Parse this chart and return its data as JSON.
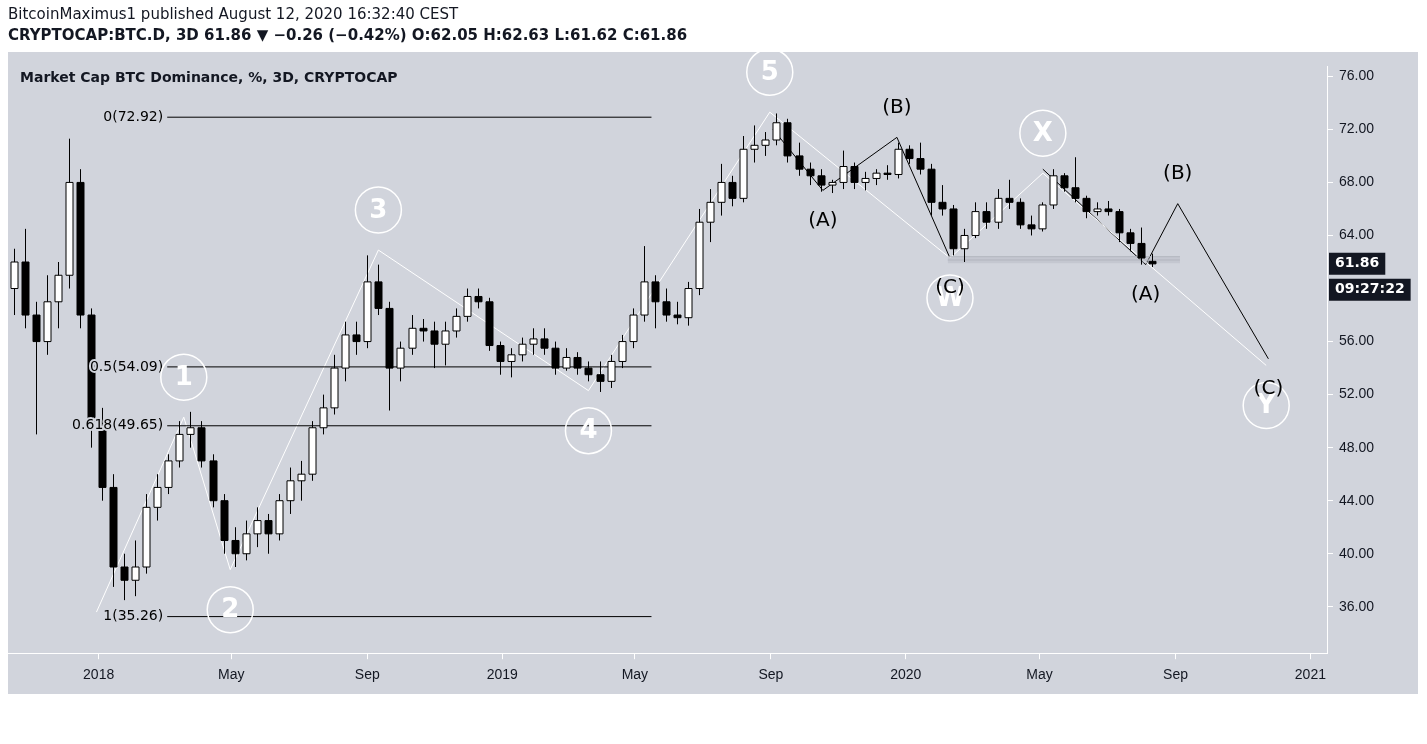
{
  "chart_data": {
    "type": "candlestick",
    "title": "BitcoinMaximus1 published August 12, 2020 16:32:40 CEST",
    "subtitle": "CRYPTOCAP:BTC.D, 3D 61.86 ▼ −0.26 (−0.42%) O:62.05 H:62.63 L:61.62 C:61.86",
    "xlim": [
      "2017-10-11",
      "2021-01-16"
    ],
    "xticks": [
      {
        "value": "2018-01-01",
        "label": "2018"
      },
      {
        "value": "2018-05-01",
        "label": "May"
      },
      {
        "value": "2018-09-01",
        "label": "Sep"
      },
      {
        "value": "2019-01-01",
        "label": "2019"
      },
      {
        "value": "2019-05-01",
        "label": "May"
      },
      {
        "value": "2019-09-01",
        "label": "Sep"
      },
      {
        "value": "2020-01-01",
        "label": "2020"
      },
      {
        "value": "2020-05-01",
        "label": "May"
      },
      {
        "value": "2020-09-01",
        "label": "Sep"
      },
      {
        "value": "2021-01-01",
        "label": "2021"
      }
    ],
    "ylim": [
      32.5,
      76.75
    ],
    "yticks": [
      {
        "value": 36,
        "label": "36.00"
      },
      {
        "value": 40,
        "label": "40.00"
      },
      {
        "value": 44,
        "label": "44.00"
      },
      {
        "value": 48,
        "label": "48.00"
      },
      {
        "value": 52,
        "label": "52.00"
      },
      {
        "value": 56,
        "label": "56.00"
      },
      {
        "value": 64,
        "label": "64.00"
      },
      {
        "value": 68,
        "label": "68.00"
      },
      {
        "value": 72,
        "label": "72.00"
      },
      {
        "value": 76,
        "label": "76.00"
      }
    ],
    "grid": false,
    "legend": false,
    "series": [
      {
        "type": "line",
        "color": "#000000",
        "name": "0(72.92)",
        "x": [
          "2018-03-04",
          "2019-05-16"
        ],
        "values": [
          72.92,
          72.92
        ]
      },
      {
        "type": "line",
        "color": "#000000",
        "name": "0.5(54.09)",
        "x": [
          "2018-03-04",
          "2019-05-16"
        ],
        "values": [
          54.09,
          54.09
        ]
      },
      {
        "type": "line",
        "color": "#000000",
        "name": "0.618(49.65)",
        "x": [
          "2018-03-04",
          "2019-05-16"
        ],
        "values": [
          49.65,
          49.65
        ]
      },
      {
        "type": "line",
        "color": "#000000",
        "name": "1(35.26)",
        "x": [
          "2018-03-04",
          "2019-05-16"
        ],
        "values": [
          35.26,
          35.26
        ]
      },
      {
        "type": "line",
        "color": "#b2b5be",
        "x": [
          "2020-02-08",
          "2020-09-05"
        ],
        "values": [
          62.15,
          62.15
        ],
        "lower": [
          61.9,
          61.9
        ],
        "upper": [
          62.4,
          62.4
        ]
      },
      {
        "type": "line",
        "color": "#ffffff",
        "x": [
          "2017-12-30",
          "2018-03-19",
          "2018-04-30",
          "2018-09-11",
          "2019-03-20",
          "2019-08-31",
          "2020-02-10",
          "2020-05-04",
          "2020-08-05",
          "2020-11-22"
        ],
        "values": [
          35.6,
          50.3,
          38.8,
          62.9,
          52.3,
          73.3,
          62.3,
          68.7,
          62,
          54.2
        ]
      },
      {
        "type": "line",
        "color": "#000000",
        "x": [
          "2019-09-03",
          "2019-10-18",
          "2019-12-24",
          "2020-02-10"
        ],
        "values": [
          72,
          67.4,
          71.4,
          62.3
        ]
      },
      {
        "type": "line",
        "color": "#000000",
        "x": [
          "2020-05-04",
          "2020-08-05",
          "2020-09-03",
          "2020-11-24"
        ],
        "values": [
          69,
          61.8,
          66.4,
          54.7
        ]
      },
      {
        "type": "candlestick",
        "color": "#000000",
        "colors": [
          "#ffffff",
          "#000000",
          "#000000",
          "#ffffff",
          "#ffffff",
          "#ffffff",
          "#000000",
          "#000000",
          "#000000",
          "#000000",
          "#000000",
          "#ffffff",
          "#ffffff",
          "#ffffff",
          "#ffffff",
          "#ffffff",
          "#ffffff",
          "#000000",
          "#000000",
          "#000000",
          "#000000",
          "#ffffff",
          "#ffffff",
          "#000000",
          "#ffffff",
          "#ffffff",
          "#ffffff",
          "#ffffff",
          "#ffffff",
          "#ffffff",
          "#ffffff",
          "#000000",
          "#ffffff",
          "#000000",
          "#000000",
          "#ffffff",
          "#ffffff",
          "#000000",
          "#000000",
          "#ffffff",
          "#ffffff",
          "#ffffff",
          "#000000",
          "#000000",
          "#000000",
          "#ffffff",
          "#ffffff",
          "#ffffff",
          "#000000",
          "#000000",
          "#ffffff",
          "#000000",
          "#000000",
          "#000000",
          "#ffffff",
          "#ffffff",
          "#ffffff",
          "#ffffff",
          "#000000",
          "#000000",
          "#000000",
          "#ffffff",
          "#ffffff",
          "#ffffff",
          "#ffffff",
          "#000000",
          "#ffffff",
          "#ffffff",
          "#ffffff",
          "#ffffff",
          "#000000",
          "#000000",
          "#000000",
          "#000000",
          "#ffffff",
          "#ffffff",
          "#000000",
          "#ffffff",
          "#ffffff",
          "#000000",
          "#ffffff",
          "#000000",
          "#000000",
          "#000000",
          "#000000",
          "#000000",
          "#ffffff",
          "#ffffff",
          "#000000",
          "#ffffff",
          "#000000",
          "#000000",
          "#000000",
          "#ffffff",
          "#ffffff",
          "#000000",
          "#000000",
          "#000000",
          "#ffffff",
          "#000000",
          "#000000",
          "#000000",
          "#000000",
          "#000000"
        ],
        "x": [
          "2017-10-16",
          "2017-10-26",
          "2017-11-05",
          "2017-11-15",
          "2017-11-25",
          "2017-12-05",
          "2017-12-15",
          "2017-12-25",
          "2018-01-04",
          "2018-01-14",
          "2018-01-24",
          "2018-02-03",
          "2018-02-13",
          "2018-02-23",
          "2018-03-05",
          "2018-03-15",
          "2018-03-25",
          "2018-04-04",
          "2018-04-14",
          "2018-04-24",
          "2018-05-04",
          "2018-05-14",
          "2018-05-24",
          "2018-06-03",
          "2018-06-13",
          "2018-06-23",
          "2018-07-03",
          "2018-07-13",
          "2018-07-23",
          "2018-08-02",
          "2018-08-12",
          "2018-08-22",
          "2018-09-01",
          "2018-09-11",
          "2018-09-21",
          "2018-10-01",
          "2018-10-11",
          "2018-10-21",
          "2018-10-31",
          "2018-11-10",
          "2018-11-20",
          "2018-11-30",
          "2018-12-10",
          "2018-12-20",
          "2018-12-30",
          "2019-01-09",
          "2019-01-19",
          "2019-01-29",
          "2019-02-08",
          "2019-02-18",
          "2019-02-28",
          "2019-03-10",
          "2019-03-20",
          "2019-03-30",
          "2019-04-09",
          "2019-04-19",
          "2019-04-29",
          "2019-05-09",
          "2019-05-19",
          "2019-05-29",
          "2019-06-08",
          "2019-06-18",
          "2019-06-28",
          "2019-07-08",
          "2019-07-18",
          "2019-07-28",
          "2019-08-07",
          "2019-08-17",
          "2019-08-27",
          "2019-09-06",
          "2019-09-16",
          "2019-09-26",
          "2019-10-06",
          "2019-10-16",
          "2019-10-26",
          "2019-11-05",
          "2019-11-15",
          "2019-11-25",
          "2019-12-05",
          "2019-12-15",
          "2019-12-25",
          "2020-01-04",
          "2020-01-14",
          "2020-01-24",
          "2020-02-03",
          "2020-02-13",
          "2020-02-23",
          "2020-03-04",
          "2020-03-14",
          "2020-03-24",
          "2020-04-03",
          "2020-04-13",
          "2020-04-23",
          "2020-05-03",
          "2020-05-13",
          "2020-05-23",
          "2020-06-02",
          "2020-06-12",
          "2020-06-22",
          "2020-07-02",
          "2020-07-12",
          "2020-07-22",
          "2020-08-01",
          "2020-08-11"
        ],
        "ohlc": [
          [
            60,
            63,
            58,
            62
          ],
          [
            62,
            64.5,
            57,
            58
          ],
          [
            58,
            59,
            49,
            56
          ],
          [
            56,
            61,
            55,
            59
          ],
          [
            59,
            62,
            57,
            61
          ],
          [
            61,
            71.3,
            60,
            68
          ],
          [
            68,
            69,
            57,
            58
          ],
          [
            58,
            58.5,
            48,
            50
          ],
          [
            50,
            51,
            44,
            45
          ],
          [
            45,
            46,
            37.5,
            39
          ],
          [
            39,
            40,
            36.5,
            38
          ],
          [
            38,
            41,
            36.8,
            39
          ],
          [
            39,
            44.5,
            38.5,
            43.5
          ],
          [
            43.5,
            46,
            42.5,
            45
          ],
          [
            45,
            47.5,
            44.5,
            47
          ],
          [
            47,
            50,
            46.5,
            49
          ],
          [
            49,
            50.7,
            48,
            49.5
          ],
          [
            49.5,
            50,
            46.5,
            47
          ],
          [
            47,
            47.5,
            43.5,
            44
          ],
          [
            44,
            44.5,
            40,
            41
          ],
          [
            41,
            42,
            39,
            40
          ],
          [
            40,
            42.5,
            39.5,
            41.5
          ],
          [
            41.5,
            43.5,
            40.5,
            42.5
          ],
          [
            42.5,
            43,
            40,
            41.5
          ],
          [
            41.5,
            44.5,
            41,
            44
          ],
          [
            44,
            46.5,
            43,
            45.5
          ],
          [
            45.5,
            47,
            44,
            46
          ],
          [
            46,
            50,
            45.5,
            49.5
          ],
          [
            49.5,
            52,
            49,
            51
          ],
          [
            51,
            55,
            50.5,
            54
          ],
          [
            54,
            57.5,
            53,
            56.5
          ],
          [
            56.5,
            57.5,
            55,
            56
          ],
          [
            56,
            62.5,
            55.5,
            60.5
          ],
          [
            60.5,
            61.8,
            58,
            58.5
          ],
          [
            58.5,
            59,
            50.8,
            54
          ],
          [
            54,
            56,
            53,
            55.5
          ],
          [
            55.5,
            58,
            55,
            57
          ],
          [
            57,
            57.7,
            56,
            56.8
          ],
          [
            56.8,
            57.5,
            54,
            55.8
          ],
          [
            55.8,
            57.5,
            54.2,
            56.8
          ],
          [
            56.8,
            58.5,
            56.3,
            57.9
          ],
          [
            57.9,
            60,
            57.5,
            59.4
          ],
          [
            59.4,
            60,
            58.5,
            59
          ],
          [
            59,
            59.3,
            55.3,
            55.7
          ],
          [
            55.7,
            56,
            53.5,
            54.5
          ],
          [
            54.5,
            55.5,
            53.3,
            55
          ],
          [
            55,
            56.3,
            54.5,
            55.8
          ],
          [
            55.8,
            57,
            55,
            56.2
          ],
          [
            56.2,
            57,
            55,
            55.5
          ],
          [
            55.5,
            56,
            53.5,
            54
          ],
          [
            54,
            55.5,
            53.8,
            54.8
          ],
          [
            54.8,
            55.2,
            53.5,
            54
          ],
          [
            54,
            54.5,
            53,
            53.5
          ],
          [
            53.5,
            54.5,
            52.2,
            53
          ],
          [
            53,
            55,
            52.5,
            54.5
          ],
          [
            54.5,
            56.5,
            54,
            56
          ],
          [
            56,
            58.5,
            55.5,
            58
          ],
          [
            58,
            63.2,
            57.5,
            60.5
          ],
          [
            60.5,
            61,
            57,
            59
          ],
          [
            59,
            60,
            57.5,
            58
          ],
          [
            58,
            59,
            57.3,
            57.8
          ],
          [
            57.8,
            60.5,
            57.2,
            60
          ],
          [
            60,
            66,
            59.5,
            65
          ],
          [
            65,
            67.5,
            63.5,
            66.5
          ],
          [
            66.5,
            69.4,
            65.5,
            68
          ],
          [
            68,
            68.5,
            66.2,
            66.8
          ],
          [
            66.8,
            71.5,
            66.5,
            70.5
          ],
          [
            70.5,
            72.3,
            69.5,
            70.8
          ],
          [
            70.8,
            71.8,
            70,
            71.2
          ],
          [
            71.2,
            73.2,
            70.8,
            72.5
          ],
          [
            72.5,
            72.8,
            69.5,
            70
          ],
          [
            70,
            71,
            68.5,
            69
          ],
          [
            69,
            69.5,
            67.8,
            68.5
          ],
          [
            68.5,
            69,
            67.3,
            67.8
          ],
          [
            67.8,
            68.2,
            67.2,
            68
          ],
          [
            68,
            70.4,
            67.5,
            69.2
          ],
          [
            69.2,
            69.5,
            67.5,
            68
          ],
          [
            68,
            68.8,
            67.4,
            68.3
          ],
          [
            68.3,
            69,
            67.8,
            68.7
          ],
          [
            68.7,
            69.3,
            68.2,
            68.6
          ],
          [
            68.6,
            71,
            68.3,
            70.5
          ],
          [
            70.5,
            70.8,
            69.4,
            69.8
          ],
          [
            69.8,
            71,
            68.6,
            69
          ],
          [
            69,
            69.4,
            65.5,
            66.5
          ],
          [
            66.5,
            67.8,
            65.5,
            66
          ],
          [
            66,
            66.3,
            62.5,
            63
          ],
          [
            63,
            64.5,
            62,
            64
          ],
          [
            64,
            66.5,
            63.8,
            65.8
          ],
          [
            65.8,
            66.5,
            64.5,
            65
          ],
          [
            65,
            67.5,
            64.5,
            66.8
          ],
          [
            66.8,
            68.2,
            66,
            66.5
          ],
          [
            66.5,
            66.8,
            64.5,
            64.8
          ],
          [
            64.8,
            65.5,
            64,
            64.5
          ],
          [
            64.5,
            66.5,
            64.3,
            66.3
          ],
          [
            66.3,
            69,
            66,
            68.5
          ],
          [
            68.5,
            68.7,
            67.3,
            67.6
          ],
          [
            67.6,
            69.9,
            66.5,
            66.8
          ],
          [
            66.8,
            67,
            65.3,
            65.8
          ],
          [
            65.8,
            66.5,
            65.5,
            66
          ],
          [
            66,
            66.6,
            65.5,
            65.8
          ],
          [
            65.8,
            66,
            63.5,
            64.2
          ],
          [
            64.2,
            64.5,
            62.8,
            63.4
          ],
          [
            63.4,
            64.6,
            61.8,
            62.3
          ],
          [
            62.05,
            62.63,
            61.62,
            61.86
          ]
        ]
      }
    ],
    "annotations": [
      "Market Cap BTC Dominance, %, 3D, CRYPTOCAP",
      {
        "text": "1",
        "x": "2018-03-19",
        "y": 50.3
      },
      {
        "text": "2",
        "x": "2018-04-30",
        "y": 38.8
      },
      {
        "text": "3",
        "x": "2018-09-11",
        "y": 62.9
      },
      {
        "text": "4",
        "x": "2019-03-20",
        "y": 52.3
      },
      {
        "text": "5",
        "x": "2019-08-31",
        "y": 73.3
      },
      {
        "text": "(A)",
        "x": "2019-10-18",
        "y": 67.4
      },
      {
        "text": "(B)",
        "x": "2019-12-24",
        "y": 71.4
      },
      {
        "text": "W",
        "x": "2020-02-10",
        "y": 62.3
      },
      {
        "text": "(C)",
        "x": "2020-02-10",
        "y": 62.3
      },
      {
        "text": "X",
        "x": "2020-05-04",
        "y": 68.7
      },
      {
        "text": "(A)",
        "x": "2020-08-05",
        "y": 61.8
      },
      {
        "text": "(B)",
        "x": "2020-09-03",
        "y": 66.4
      },
      {
        "text": "Y",
        "x": "2020-11-22",
        "y": 54.2
      },
      {
        "text": "(C)",
        "x": "2020-11-24",
        "y": 54.7
      },
      "61.86",
      "09:27:22"
    ]
  }
}
